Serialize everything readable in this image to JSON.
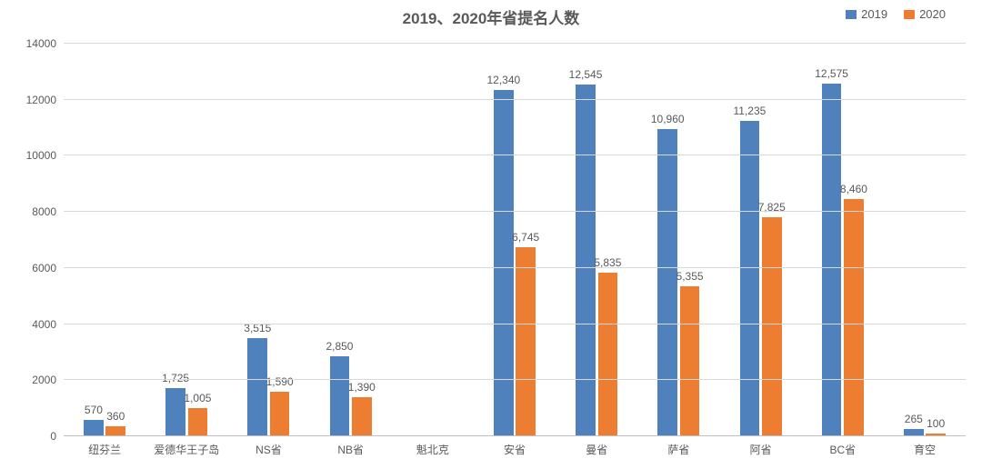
{
  "chart": {
    "type": "bar",
    "title": "2019、2020年省提名人数",
    "title_fontsize": 17,
    "title_color": "#595959",
    "background_color": "#ffffff",
    "grid_color": "#d9d9d9",
    "axis_color": "#bfbfbf",
    "label_color": "#595959",
    "label_fontsize": 12,
    "y": {
      "min": 0,
      "max": 14000,
      "tick_step": 2000
    },
    "bar": {
      "width_pct": 24,
      "gap_pct": 3
    },
    "legend": {
      "position": "top-right",
      "items": [
        {
          "label": "2019",
          "color": "#4f81bd"
        },
        {
          "label": "2020",
          "color": "#ed7d31"
        }
      ]
    },
    "series": [
      {
        "name": "2019",
        "color": "#4f81bd"
      },
      {
        "name": "2020",
        "color": "#ed7d31"
      }
    ],
    "categories": [
      {
        "label": "纽芬兰",
        "values": [
          570,
          360
        ],
        "display": [
          "570",
          "360"
        ]
      },
      {
        "label": "爱德华王子岛",
        "values": [
          1725,
          1005
        ],
        "display": [
          "1,725",
          "1,005"
        ]
      },
      {
        "label": "NS省",
        "values": [
          3515,
          1590
        ],
        "display": [
          "3,515",
          "1,590"
        ]
      },
      {
        "label": "NB省",
        "values": [
          2850,
          1390
        ],
        "display": [
          "2,850",
          "1,390"
        ]
      },
      {
        "label": "魁北克",
        "values": [
          null,
          null
        ],
        "display": [
          "",
          ""
        ]
      },
      {
        "label": "安省",
        "values": [
          12340,
          6745
        ],
        "display": [
          "12,340",
          "6,745"
        ]
      },
      {
        "label": "曼省",
        "values": [
          12545,
          5835
        ],
        "display": [
          "12,545",
          "5,835"
        ]
      },
      {
        "label": "萨省",
        "values": [
          10960,
          5355
        ],
        "display": [
          "10,960",
          "5,355"
        ]
      },
      {
        "label": "阿省",
        "values": [
          11235,
          7825
        ],
        "display": [
          "11,235",
          "7,825"
        ]
      },
      {
        "label": "BC省",
        "values": [
          12575,
          8460
        ],
        "display": [
          "12,575",
          "8,460"
        ]
      },
      {
        "label": "育空",
        "values": [
          265,
          100
        ],
        "display": [
          "265",
          "100"
        ]
      }
    ]
  }
}
